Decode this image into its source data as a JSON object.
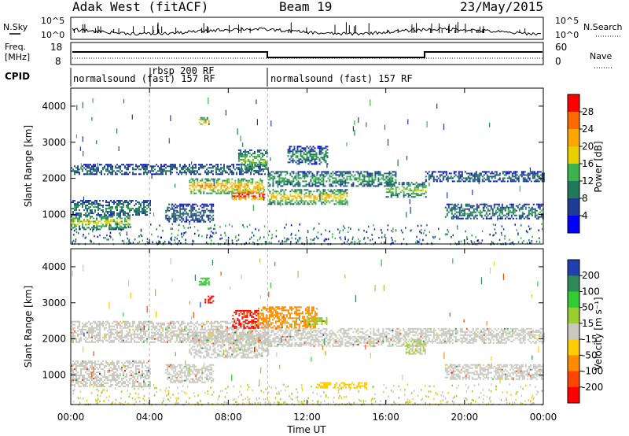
{
  "header": {
    "radar": "Adak West (fitACF)",
    "beam": "Beam 19",
    "date": "23/May/2015"
  },
  "top_panels": {
    "nsky_label": "N.Sky",
    "nsearch_label": "N.Search",
    "noise_ticks_left": [
      "10^5",
      "10^0"
    ],
    "noise_ticks_right": [
      "10^5",
      "10^0"
    ],
    "freq_label_1": "Freq.",
    "freq_label_2": "[MHz]",
    "freq_ticks": [
      "18",
      "8"
    ],
    "nave_label": "Nave",
    "nave_ticks": [
      "60",
      "0"
    ],
    "cpid_label": "CPID",
    "cpid_segments": [
      {
        "text": "normalsound (fast) 157 RF"
      },
      {
        "text": "rbsp 200 RF"
      },
      {
        "text": "normalsound (fast) 157 RF"
      }
    ]
  },
  "axes": {
    "ylabel": "Slant Range [km]",
    "xlabel": "Time UT",
    "xticks": [
      "00:00",
      "04:00",
      "08:00",
      "12:00",
      "16:00",
      "20:00",
      "00:00"
    ],
    "yticks": [
      "1000",
      "2000",
      "3000",
      "4000"
    ]
  },
  "colorbars": {
    "power": {
      "label": "Power [dB]",
      "ticks": [
        "28",
        "24",
        "20",
        "16",
        "12",
        "8",
        "4"
      ],
      "colors": [
        "#ff0000",
        "#ff6a00",
        "#ffa500",
        "#e8d000",
        "#3cb44b",
        "#1f7a5a",
        "#1e3c96",
        "#0000ff"
      ]
    },
    "velocity": {
      "label": "Velocity [m s⁻¹]",
      "ticks": [
        "200",
        "100",
        "50",
        "15",
        "-15",
        "-50",
        "-100",
        "-200"
      ],
      "colors": [
        "#2040b0",
        "#2e8b57",
        "#32cd32",
        "#9acd32",
        "#c8c8c0",
        "#ffcc00",
        "#ff8c00",
        "#ff4500",
        "#ff0000"
      ]
    }
  },
  "chart_data": [
    {
      "type": "heatmap",
      "title": "Power",
      "xlabel": "Time UT",
      "ylabel": "Slant Range [km]",
      "xlim": [
        0,
        24
      ],
      "ylim": [
        180,
        4500
      ],
      "color_range": [
        0,
        32
      ],
      "features": [
        {
          "t": [
            0,
            4
          ],
          "range": [
            1000,
            1400
          ],
          "level": 10
        },
        {
          "t": [
            0,
            3
          ],
          "range": [
            600,
            1000
          ],
          "level": 16
        },
        {
          "t": [
            0,
            10
          ],
          "range": [
            2100,
            2400
          ],
          "level": 8
        },
        {
          "t": [
            4.8,
            7.2
          ],
          "range": [
            800,
            1300
          ],
          "level": 8
        },
        {
          "t": [
            6,
            9.8
          ],
          "range": [
            1600,
            2000
          ],
          "level": 20
        },
        {
          "t": [
            8.2,
            9.8
          ],
          "range": [
            1400,
            1700
          ],
          "level": 28
        },
        {
          "t": [
            8.5,
            10
          ],
          "range": [
            2200,
            2800
          ],
          "level": 14
        },
        {
          "t": [
            6.5,
            7
          ],
          "range": [
            3500,
            3700
          ],
          "level": 20
        },
        {
          "t": [
            10,
            14
          ],
          "range": [
            1300,
            1700
          ],
          "level": 18
        },
        {
          "t": [
            10,
            16.5
          ],
          "range": [
            1800,
            2200
          ],
          "level": 12
        },
        {
          "t": [
            11,
            13
          ],
          "range": [
            2400,
            2900
          ],
          "level": 10
        },
        {
          "t": [
            16,
            18
          ],
          "range": [
            1500,
            1900
          ],
          "level": 14
        },
        {
          "t": [
            18,
            24
          ],
          "range": [
            1900,
            2200
          ],
          "level": 8
        },
        {
          "t": [
            19,
            24
          ],
          "range": [
            900,
            1300
          ],
          "level": 10
        }
      ]
    },
    {
      "type": "heatmap",
      "title": "Velocity",
      "xlabel": "Time UT",
      "ylabel": "Slant Range [km]",
      "xlim": [
        0,
        24
      ],
      "ylim": [
        180,
        4500
      ],
      "color_range": [
        -250,
        250
      ],
      "features": [
        {
          "t": [
            0,
            4
          ],
          "range": [
            700,
            1400
          ],
          "value": 0
        },
        {
          "t": [
            0,
            10
          ],
          "range": [
            1900,
            2500
          ],
          "value": 0
        },
        {
          "t": [
            4.8,
            7.2
          ],
          "range": [
            800,
            1300
          ],
          "value": 0
        },
        {
          "t": [
            6,
            10
          ],
          "range": [
            1500,
            2200
          ],
          "value": 0
        },
        {
          "t": [
            8.2,
            9.5
          ],
          "range": [
            2300,
            2800
          ],
          "value": -200
        },
        {
          "t": [
            9.5,
            12.5
          ],
          "range": [
            2300,
            2900
          ],
          "value": -100
        },
        {
          "t": [
            12,
            13
          ],
          "range": [
            2400,
            2600
          ],
          "value": 50
        },
        {
          "t": [
            6.5,
            7
          ],
          "range": [
            3500,
            3700
          ],
          "value": 100
        },
        {
          "t": [
            6.8,
            7.2
          ],
          "range": [
            3000,
            3200
          ],
          "value": -200
        },
        {
          "t": [
            10,
            18
          ],
          "range": [
            1800,
            2300
          ],
          "value": 0
        },
        {
          "t": [
            12.5,
            15
          ],
          "range": [
            650,
            800
          ],
          "value": -50
        },
        {
          "t": [
            17,
            18
          ],
          "range": [
            1600,
            2000
          ],
          "value": 30
        },
        {
          "t": [
            18,
            24
          ],
          "range": [
            1900,
            2300
          ],
          "value": 0
        },
        {
          "t": [
            19,
            24
          ],
          "range": [
            900,
            1300
          ],
          "value": 0
        }
      ]
    }
  ]
}
